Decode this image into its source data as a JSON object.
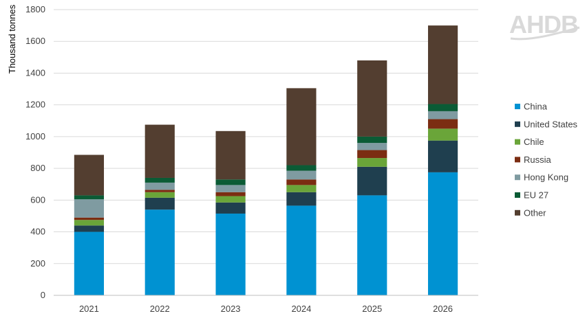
{
  "logo": {
    "text": "AHDB"
  },
  "chart_data": {
    "type": "bar",
    "stacked": true,
    "title": "",
    "xlabel": "",
    "ylabel": "Thousand tonnes",
    "ylim": [
      0,
      1800
    ],
    "yticks": [
      0,
      200,
      400,
      600,
      800,
      1000,
      1200,
      1400,
      1600,
      1800
    ],
    "grid": true,
    "legend_position": "right",
    "categories": [
      "2021",
      "2022",
      "2023",
      "2024",
      "2025",
      "2026"
    ],
    "series": [
      {
        "name": "China",
        "color": "#0092d2",
        "values": [
          400,
          540,
          515,
          565,
          630,
          775
        ]
      },
      {
        "name": "United States",
        "color": "#1f3f4f",
        "values": [
          40,
          75,
          70,
          85,
          180,
          200
        ]
      },
      {
        "name": "Chile",
        "color": "#6aa539",
        "values": [
          35,
          35,
          40,
          45,
          55,
          75
        ]
      },
      {
        "name": "Russia",
        "color": "#7b2d12",
        "values": [
          15,
          15,
          25,
          35,
          50,
          60
        ]
      },
      {
        "name": "Hong Kong",
        "color": "#7f9ba1",
        "values": [
          115,
          45,
          45,
          55,
          45,
          50
        ]
      },
      {
        "name": "EU 27",
        "color": "#0b5b35",
        "values": [
          25,
          30,
          35,
          35,
          40,
          45
        ]
      },
      {
        "name": "Other",
        "color": "#533e30",
        "values": [
          255,
          335,
          305,
          485,
          480,
          495
        ]
      }
    ]
  }
}
